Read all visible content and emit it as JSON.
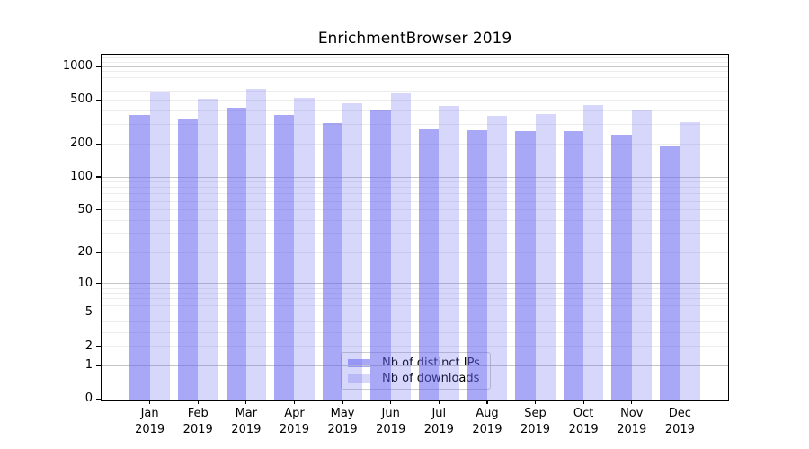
{
  "figure": {
    "background": "#ffffff"
  },
  "chart_data": {
    "type": "bar",
    "title": "EnrichmentBrowser 2019",
    "xlabel": "",
    "ylabel": "",
    "categories": [
      "Jan 2019",
      "Feb 2019",
      "Mar 2019",
      "Apr 2019",
      "May 2019",
      "Jun 2019",
      "Jul 2019",
      "Aug 2019",
      "Sep 2019",
      "Oct 2019",
      "Nov 2019",
      "Dec 2019"
    ],
    "series": [
      {
        "name": "Nb of distinct IPs",
        "color": "rgba(96,96,240,0.55)",
        "legend_color": "#a8a8f7",
        "values": [
          365,
          340,
          425,
          365,
          310,
          400,
          270,
          265,
          260,
          260,
          240,
          190
        ]
      },
      {
        "name": "Nb of downloads",
        "color": "rgba(96,96,240,0.25)",
        "legend_color": "#d7d7fb",
        "values": [
          585,
          510,
          630,
          520,
          470,
          570,
          440,
          360,
          370,
          445,
          405,
          315
        ]
      }
    ],
    "yscale": "symlog (position = log10(value+1))",
    "ylim": [
      0,
      1270
    ],
    "yticks": [
      0,
      1,
      2,
      5,
      10,
      20,
      50,
      100,
      200,
      500,
      1000
    ],
    "decade_gridlines": [
      1,
      10,
      100,
      1000
    ],
    "minor_gridlines": [
      2,
      3,
      4,
      5,
      6,
      7,
      8,
      9,
      20,
      30,
      40,
      50,
      60,
      70,
      80,
      90,
      200,
      300,
      400,
      500,
      600,
      700,
      800,
      900,
      1100,
      1200
    ],
    "grid": true,
    "legend_position": "lower center"
  },
  "legend": {
    "items": [
      {
        "label": "Nb of distinct IPs"
      },
      {
        "label": "Nb of downloads"
      }
    ]
  },
  "colors": {
    "grid_decade": "#c6c6c6",
    "grid_minor": "#ececec",
    "spine": "#000000",
    "text": "#000000",
    "legend_border": "#cccccc"
  }
}
